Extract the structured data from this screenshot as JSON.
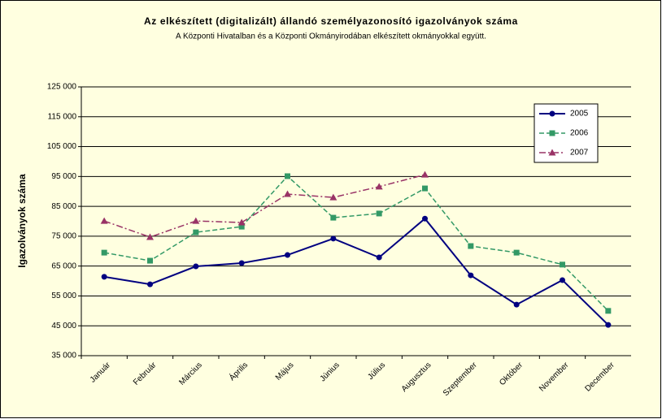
{
  "chart_data": {
    "type": "line",
    "title": "Az elkészített (digitalizált) állandó személyazonosító igazolványok száma",
    "subtitle": "A Központi Hivatalban és a Központi Okmányirodában elkészített okmányokkal együtt.",
    "y_label": "Igazolványok száma",
    "categories": [
      "Január",
      "Február",
      "Március",
      "Április",
      "Május",
      "Június",
      "Július",
      "Augusztus",
      "Szeptember",
      "Október",
      "November",
      "December"
    ],
    "series": [
      {
        "name": "2005",
        "color": "#000080",
        "values": [
          61400,
          58900,
          64900,
          66000,
          68700,
          74200,
          67900,
          80900,
          61900,
          52100,
          60300,
          45300
        ]
      },
      {
        "name": "2006",
        "color": "#339966",
        "values": [
          69500,
          66800,
          76300,
          78200,
          95100,
          81200,
          82600,
          91000,
          71700,
          69500,
          65500,
          50000
        ]
      },
      {
        "name": "2007",
        "color": "#993366",
        "values": [
          80100,
          74700,
          80100,
          79600,
          89100,
          88000,
          91600,
          95600,
          null,
          null,
          null,
          null
        ]
      }
    ],
    "ylim": [
      35000,
      125000
    ],
    "yticks": [
      {
        "value": 35000,
        "label": "35 000"
      },
      {
        "value": 45000,
        "label": "45 000"
      },
      {
        "value": 55000,
        "label": "55 000"
      },
      {
        "value": 65000,
        "label": "65 000"
      },
      {
        "value": 75000,
        "label": "75 000"
      },
      {
        "value": 85000,
        "label": "85 000"
      },
      {
        "value": 95000,
        "label": "95 000"
      },
      {
        "value": 105000,
        "label": "105 000"
      },
      {
        "value": 115000,
        "label": "115 000"
      },
      {
        "value": 125000,
        "label": "125 000"
      }
    ],
    "grid": true,
    "legend": "top-right"
  }
}
